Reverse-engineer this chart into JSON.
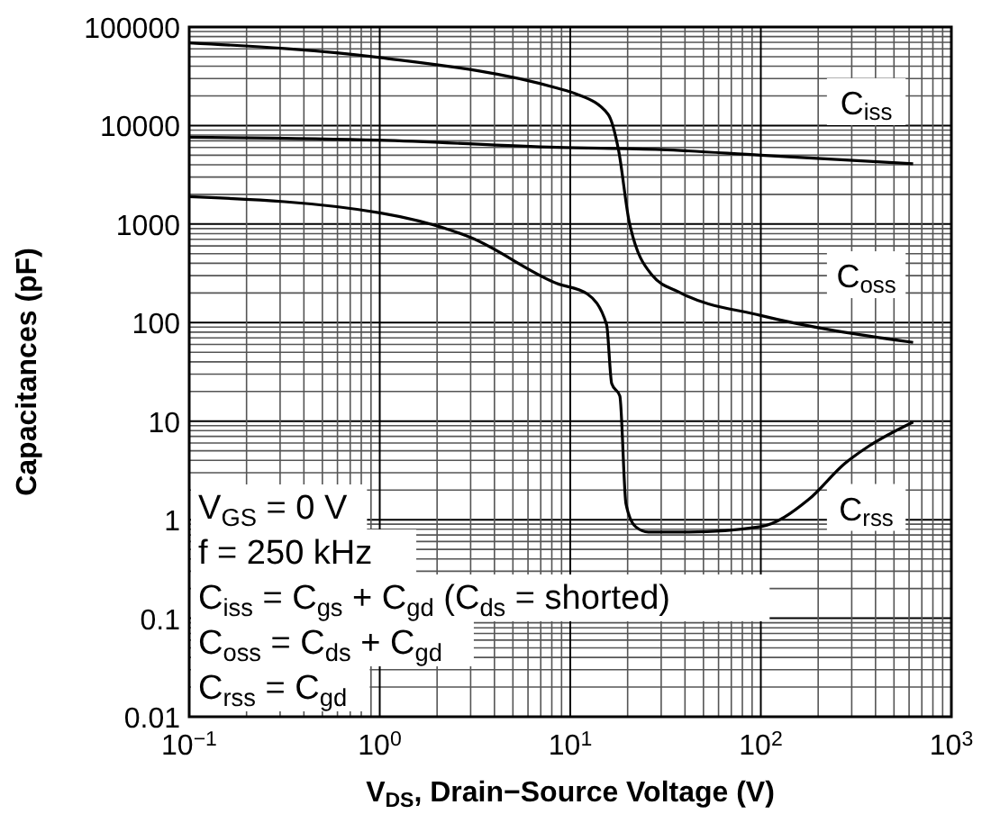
{
  "chart_data": {
    "type": "line",
    "xlabel": "V$_{DS}$, Drain−Source Voltage (V)",
    "ylabel": "Capacitances (pF)",
    "log": "xy",
    "grid": true,
    "line_style": "solid",
    "marker": "none",
    "xlim": [
      0.1,
      1000
    ],
    "xticks": [
      {
        "value": 0.1,
        "label": "10$^{−1}$"
      },
      {
        "value": 1,
        "label": "10$^{0}$"
      },
      {
        "value": 10,
        "label": "10$^{1}$"
      },
      {
        "value": 100,
        "label": "10$^{2}$"
      },
      {
        "value": 1000,
        "label": "10$^{3}$"
      }
    ],
    "ylim": [
      0.01,
      100000
    ],
    "yticks": [
      0.01,
      0.1,
      1,
      10,
      100,
      1000,
      10000,
      100000
    ],
    "series": [
      {
        "name": "C$_{oss}$",
        "color": "#000000",
        "x": [
          0.1,
          1,
          8.5,
          10.7,
          15.8,
          17.9,
          20.4,
          27,
          37,
          100,
          630
        ],
        "values": [
          69000,
          49000,
          24000,
          21000,
          13000,
          5700,
          1050,
          300,
          205,
          118,
          63
        ]
      },
      {
        "name": "C$_{iss}$",
        "color": "#000000",
        "x": [
          0.1,
          1,
          8.5,
          30,
          100,
          630
        ],
        "values": [
          7600,
          7100,
          6000,
          5700,
          5000,
          4100
        ]
      },
      {
        "name": "C$_{rss}$",
        "color": "#000000",
        "x": [
          0.1,
          1,
          3,
          8.5,
          12.3,
          15.5,
          16.5,
          18.2,
          19.6,
          22,
          25.7,
          42,
          100,
          178,
          275,
          370,
          630
        ],
        "values": [
          1900,
          1300,
          730,
          250,
          195,
          96,
          24,
          18,
          1.45,
          0.85,
          0.75,
          0.75,
          0.85,
          1.6,
          3.7,
          5.6,
          9.8
        ]
      }
    ],
    "annotations": [
      "V$_{GS}$ = 0 V",
      "f = 250 kHz",
      "C$_{iss}$ = C$_{gs}$ + C$_{gd}$ (C$_{ds}$ = shorted)",
      "C$_{oss}$ = C$_{ds}$ + C$_{gd}$",
      "C$_{rss}$ = C$_{gd}$"
    ]
  }
}
